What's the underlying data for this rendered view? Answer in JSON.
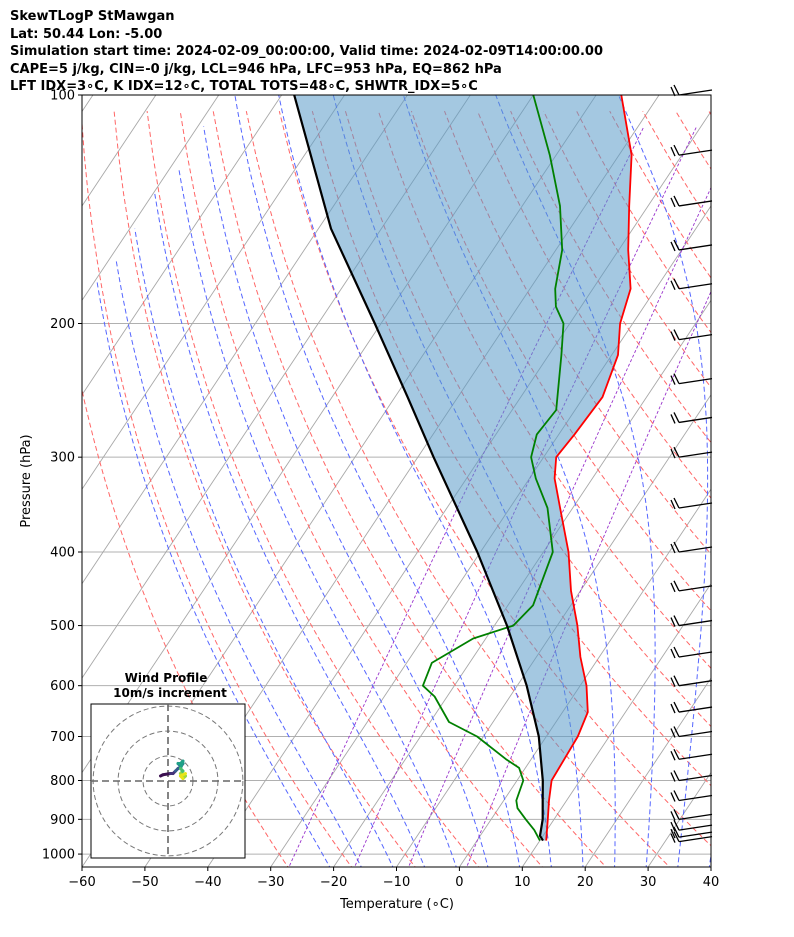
{
  "header": {
    "line1": "SkewTLogP StMawgan",
    "line2": "Lat: 50.44   Lon: -5.00",
    "line3": "Simulation start time: 2024-02-09_00:00:00, Valid time: 2024-02-09T14:00:00.00",
    "line4": "CAPE=5 j/kg, CIN=-0 j/kg, LCL=946 hPa, LFC=953 hPa, EQ=862 hPa",
    "line5": "LFT IDX=3∘C, K IDX=12∘C, TOTAL TOTS=48∘C, SHWTR_IDX=5∘C"
  },
  "chart_data": {
    "type": "line",
    "subtype": "skew-t log-p",
    "xlabel": "Temperature (∘C)",
    "ylabel": "Pressure (hPa)",
    "xlim": [
      -60,
      40
    ],
    "ylim": [
      1040,
      100
    ],
    "x_ticks": [
      -60,
      -50,
      -40,
      -30,
      -20,
      -10,
      0,
      10,
      20,
      30,
      40
    ],
    "x_tick_labels": [
      "−60",
      "−50",
      "−40",
      "−30",
      "−20",
      "−10",
      "0",
      "10",
      "20",
      "30",
      "40"
    ],
    "y_ticks": [
      100,
      200,
      300,
      400,
      500,
      600,
      700,
      800,
      900,
      1000
    ],
    "y_tick_labels": [
      "100",
      "200",
      "300",
      "400",
      "500",
      "600",
      "700",
      "800",
      "900",
      "1000"
    ],
    "series": [
      {
        "name": "Temperature",
        "color": "#ff0000",
        "points": [
          [
            960,
            11
          ],
          [
            900,
            9
          ],
          [
            850,
            7.2
          ],
          [
            800,
            5.5
          ],
          [
            700,
            5
          ],
          [
            650,
            4
          ],
          [
            600,
            1
          ],
          [
            550,
            -3
          ],
          [
            500,
            -6.8
          ],
          [
            450,
            -11.5
          ],
          [
            400,
            -16
          ],
          [
            350,
            -22
          ],
          [
            320,
            -26
          ],
          [
            300,
            -28
          ],
          [
            280,
            -27.5
          ],
          [
            250,
            -27
          ],
          [
            220,
            -29
          ],
          [
            200,
            -32
          ],
          [
            180,
            -34
          ],
          [
            160,
            -38.5
          ],
          [
            140,
            -43
          ],
          [
            120,
            -48
          ],
          [
            100,
            -56
          ]
        ]
      },
      {
        "name": "Dewpoint",
        "color": "#008000",
        "points": [
          [
            960,
            10
          ],
          [
            930,
            8
          ],
          [
            900,
            5.5
          ],
          [
            870,
            3
          ],
          [
            850,
            2
          ],
          [
            800,
            1
          ],
          [
            770,
            -1
          ],
          [
            750,
            -4
          ],
          [
            700,
            -11
          ],
          [
            670,
            -17
          ],
          [
            620,
            -22
          ],
          [
            600,
            -25
          ],
          [
            560,
            -26
          ],
          [
            520,
            -22
          ],
          [
            500,
            -17
          ],
          [
            470,
            -16
          ],
          [
            400,
            -18.5
          ],
          [
            350,
            -24
          ],
          [
            320,
            -29
          ],
          [
            300,
            -32
          ],
          [
            280,
            -33.5
          ],
          [
            260,
            -33
          ],
          [
            220,
            -38
          ],
          [
            200,
            -41
          ],
          [
            190,
            -44
          ],
          [
            180,
            -46
          ],
          [
            160,
            -49
          ],
          [
            140,
            -54
          ],
          [
            120,
            -61
          ],
          [
            100,
            -70
          ]
        ]
      },
      {
        "name": "Parcel",
        "color": "#000000",
        "points": [
          [
            960,
            10.5
          ],
          [
            946,
            9.5
          ],
          [
            900,
            8.2
          ],
          [
            850,
            6.2
          ],
          [
            800,
            4.1
          ],
          [
            700,
            -1.2
          ],
          [
            600,
            -8.5
          ],
          [
            500,
            -18
          ],
          [
            400,
            -30.5
          ],
          [
            300,
            -47.5
          ],
          [
            250,
            -58
          ],
          [
            200,
            -71
          ],
          [
            150,
            -88
          ],
          [
            100,
            -108
          ]
        ]
      }
    ],
    "wind_barbs": {
      "pressures": [
        963,
        950,
        930,
        900,
        850,
        800,
        750,
        700,
        650,
        600,
        550,
        500,
        450,
        400,
        350,
        300,
        270,
        240,
        210,
        180,
        160,
        140,
        120,
        100
      ]
    },
    "hodograph": {
      "title": "Wind Profile",
      "subtitle": "10m/s increment",
      "rings": [
        10,
        20,
        30
      ],
      "points": [
        [
          -3,
          2
        ],
        [
          -2,
          2.5
        ],
        [
          1,
          3
        ],
        [
          2,
          3
        ],
        [
          3,
          4
        ],
        [
          4,
          5
        ],
        [
          5,
          5.5
        ],
        [
          6,
          7
        ],
        [
          5,
          6
        ],
        [
          4,
          7
        ],
        [
          5,
          7
        ],
        [
          6,
          8
        ],
        [
          5,
          5
        ],
        [
          6,
          4
        ],
        [
          5,
          3
        ],
        [
          6,
          2
        ],
        [
          7,
          2
        ],
        [
          6,
          1
        ],
        [
          5,
          2
        ],
        [
          7,
          3
        ]
      ]
    }
  }
}
